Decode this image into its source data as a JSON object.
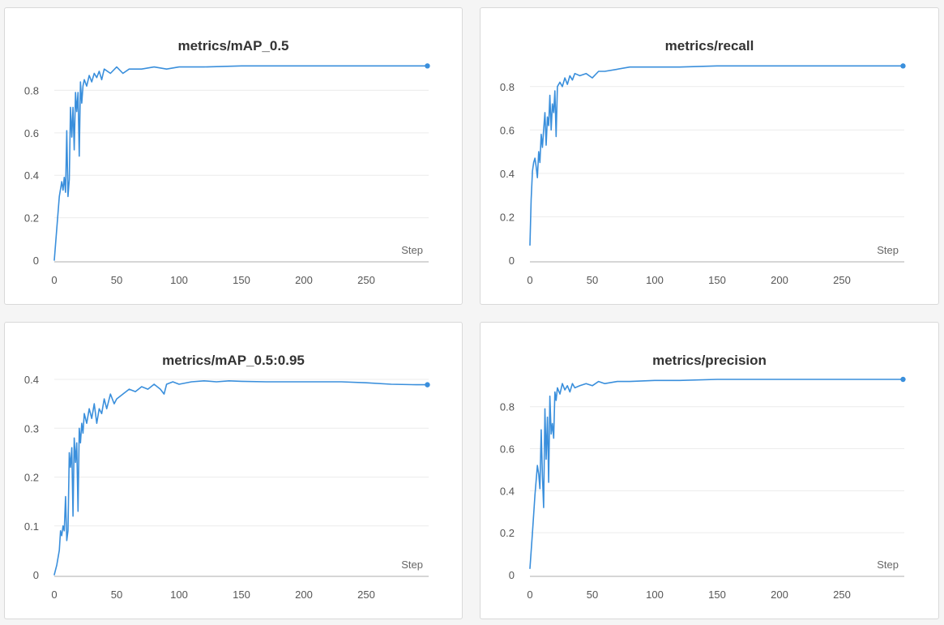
{
  "colors": {
    "series": "#3a8fdc",
    "grid": "#ececec",
    "axis": "#d6d6d6",
    "panel_border": "#d9d9d9",
    "background": "#f5f5f5"
  },
  "chart_data": [
    {
      "type": "line",
      "title": "metrics/mAP_0.5",
      "xlabel": "Step",
      "ylabel": "",
      "xlim": [
        0,
        300
      ],
      "ylim": [
        0,
        0.92
      ],
      "xticks": [
        "0",
        "50",
        "100",
        "150",
        "200",
        "250"
      ],
      "yticks": [
        "0",
        "0.2",
        "0.4",
        "0.6",
        "0.8"
      ],
      "grid": true,
      "series": [
        {
          "x": [
            0,
            2,
            4,
            6,
            7,
            8,
            9,
            10,
            11,
            12,
            13,
            14,
            15,
            16,
            17,
            18,
            19,
            20,
            21,
            22,
            23,
            24,
            26,
            28,
            30,
            32,
            34,
            36,
            38,
            40,
            45,
            50,
            55,
            60,
            70,
            80,
            90,
            100,
            120,
            150,
            200,
            250,
            299
          ],
          "y": [
            0.0,
            0.15,
            0.3,
            0.37,
            0.33,
            0.39,
            0.32,
            0.61,
            0.3,
            0.38,
            0.72,
            0.58,
            0.72,
            0.52,
            0.79,
            0.7,
            0.79,
            0.49,
            0.84,
            0.74,
            0.82,
            0.85,
            0.82,
            0.87,
            0.84,
            0.88,
            0.86,
            0.89,
            0.85,
            0.9,
            0.88,
            0.91,
            0.88,
            0.9,
            0.9,
            0.91,
            0.9,
            0.91,
            0.91,
            0.915,
            0.915,
            0.915,
            0.915
          ]
        }
      ]
    },
    {
      "type": "line",
      "title": "metrics/recall",
      "xlabel": "Step",
      "ylabel": "",
      "xlim": [
        0,
        300
      ],
      "ylim": [
        0,
        0.9
      ],
      "xticks": [
        "0",
        "50",
        "100",
        "150",
        "200",
        "250"
      ],
      "yticks": [
        "0",
        "0.2",
        "0.4",
        "0.6",
        "0.8"
      ],
      "grid": true,
      "series": [
        {
          "x": [
            0,
            1,
            2,
            3,
            4,
            5,
            6,
            7,
            8,
            9,
            10,
            11,
            12,
            13,
            14,
            15,
            16,
            17,
            18,
            19,
            20,
            21,
            22,
            24,
            26,
            28,
            30,
            32,
            34,
            36,
            40,
            45,
            50,
            55,
            60,
            70,
            80,
            100,
            120,
            150,
            200,
            250,
            299
          ],
          "y": [
            0.07,
            0.28,
            0.41,
            0.45,
            0.47,
            0.43,
            0.38,
            0.5,
            0.45,
            0.58,
            0.52,
            0.6,
            0.68,
            0.53,
            0.66,
            0.62,
            0.76,
            0.6,
            0.72,
            0.68,
            0.78,
            0.57,
            0.8,
            0.82,
            0.8,
            0.84,
            0.81,
            0.85,
            0.83,
            0.86,
            0.85,
            0.86,
            0.84,
            0.87,
            0.87,
            0.88,
            0.89,
            0.89,
            0.89,
            0.895,
            0.895,
            0.895,
            0.895
          ]
        }
      ]
    },
    {
      "type": "line",
      "title": "metrics/mAP_0.5:0.95",
      "xlabel": "Step",
      "ylabel": "",
      "xlim": [
        0,
        300
      ],
      "ylim": [
        0,
        0.4
      ],
      "xticks": [
        "0",
        "50",
        "100",
        "150",
        "200",
        "250"
      ],
      "yticks": [
        "0",
        "0.1",
        "0.2",
        "0.3",
        "0.4"
      ],
      "grid": true,
      "series": [
        {
          "x": [
            0,
            2,
            4,
            5,
            6,
            7,
            8,
            9,
            10,
            11,
            12,
            13,
            14,
            15,
            16,
            17,
            18,
            19,
            20,
            21,
            22,
            23,
            24,
            26,
            28,
            30,
            32,
            34,
            36,
            38,
            40,
            42,
            45,
            48,
            50,
            55,
            60,
            65,
            70,
            75,
            80,
            85,
            88,
            90,
            95,
            100,
            110,
            120,
            130,
            140,
            150,
            170,
            200,
            230,
            250,
            270,
            290,
            299
          ],
          "y": [
            0.0,
            0.02,
            0.05,
            0.09,
            0.08,
            0.1,
            0.09,
            0.16,
            0.07,
            0.09,
            0.25,
            0.22,
            0.26,
            0.12,
            0.28,
            0.23,
            0.27,
            0.13,
            0.3,
            0.27,
            0.31,
            0.29,
            0.33,
            0.31,
            0.34,
            0.32,
            0.35,
            0.31,
            0.34,
            0.33,
            0.36,
            0.34,
            0.37,
            0.35,
            0.36,
            0.37,
            0.38,
            0.375,
            0.385,
            0.38,
            0.39,
            0.38,
            0.37,
            0.39,
            0.395,
            0.39,
            0.395,
            0.397,
            0.395,
            0.397,
            0.396,
            0.395,
            0.395,
            0.395,
            0.393,
            0.39,
            0.389,
            0.389
          ]
        }
      ]
    },
    {
      "type": "line",
      "title": "metrics/precision",
      "xlabel": "Step",
      "ylabel": "",
      "xlim": [
        0,
        300
      ],
      "ylim": [
        0,
        0.93
      ],
      "xticks": [
        "0",
        "50",
        "100",
        "150",
        "200",
        "250"
      ],
      "yticks": [
        "0",
        "0.2",
        "0.4",
        "0.6",
        "0.8"
      ],
      "grid": true,
      "series": [
        {
          "x": [
            0,
            2,
            4,
            5,
            6,
            7,
            8,
            9,
            10,
            11,
            12,
            13,
            14,
            15,
            16,
            17,
            18,
            19,
            20,
            21,
            22,
            24,
            26,
            28,
            30,
            32,
            34,
            36,
            40,
            45,
            50,
            55,
            60,
            70,
            80,
            100,
            120,
            150,
            200,
            250,
            299
          ],
          "y": [
            0.03,
            0.2,
            0.38,
            0.45,
            0.52,
            0.48,
            0.41,
            0.69,
            0.47,
            0.32,
            0.79,
            0.55,
            0.75,
            0.44,
            0.85,
            0.67,
            0.72,
            0.65,
            0.87,
            0.83,
            0.89,
            0.86,
            0.91,
            0.88,
            0.9,
            0.87,
            0.91,
            0.89,
            0.9,
            0.91,
            0.9,
            0.92,
            0.91,
            0.92,
            0.92,
            0.925,
            0.925,
            0.93,
            0.93,
            0.93,
            0.93
          ]
        }
      ]
    }
  ]
}
